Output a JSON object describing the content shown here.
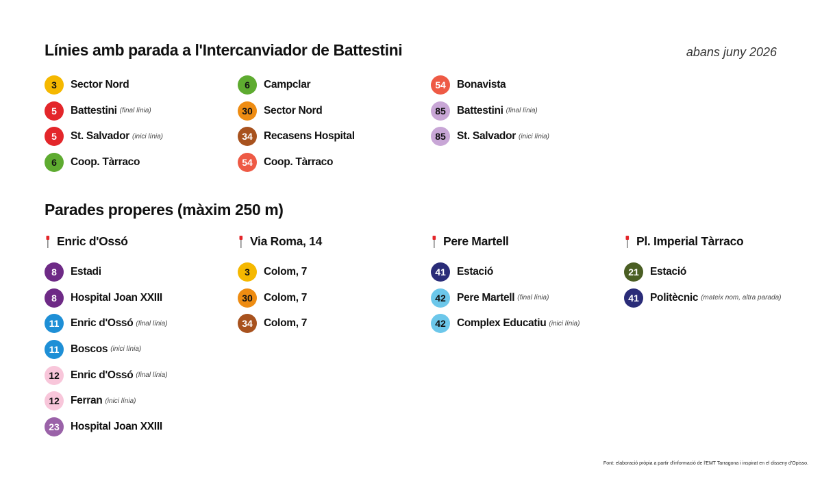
{
  "title": "Línies amb parada a l'Intercanviador de Battestini",
  "date_note": "abans juny 2026",
  "lines_columns": [
    [
      {
        "num": "3",
        "bg": "#F5B800",
        "fg": "#111111",
        "dest": "Sector Nord",
        "note": ""
      },
      {
        "num": "5",
        "bg": "#E3262A",
        "fg": "#ffffff",
        "dest": "Battestini",
        "note": "(final línia)"
      },
      {
        "num": "5",
        "bg": "#E3262A",
        "fg": "#ffffff",
        "dest": "St. Salvador",
        "note": "(inici línia)"
      },
      {
        "num": "6",
        "bg": "#5EAB30",
        "fg": "#111111",
        "dest": "Coop. Tàrraco",
        "note": ""
      }
    ],
    [
      {
        "num": "6",
        "bg": "#5EAB30",
        "fg": "#111111",
        "dest": "Campclar",
        "note": ""
      },
      {
        "num": "30",
        "bg": "#EE8C12",
        "fg": "#111111",
        "dest": "Sector Nord",
        "note": ""
      },
      {
        "num": "34",
        "bg": "#A8521E",
        "fg": "#ffffff",
        "dest": "Recasens Hospital",
        "note": ""
      },
      {
        "num": "54",
        "bg": "#EE5A45",
        "fg": "#ffffff",
        "dest": "Coop. Tàrraco",
        "note": ""
      }
    ],
    [
      {
        "num": "54",
        "bg": "#EE5A45",
        "fg": "#ffffff",
        "dest": "Bonavista",
        "note": ""
      },
      {
        "num": "85",
        "bg": "#C8A6D6",
        "fg": "#111111",
        "dest": "Battestini",
        "note": "(final línia)"
      },
      {
        "num": "85",
        "bg": "#C8A6D6",
        "fg": "#111111",
        "dest": "St. Salvador",
        "note": "(inici línia)"
      }
    ]
  ],
  "nearby_title": "Parades properes (màxim 250 m)",
  "stops": [
    {
      "name": "Enric d'Ossó",
      "lines": [
        {
          "num": "8",
          "bg": "#6E2A86",
          "fg": "#ffffff",
          "dest": "Estadi",
          "note": ""
        },
        {
          "num": "8",
          "bg": "#6E2A86",
          "fg": "#ffffff",
          "dest": "Hospital Joan XXIII",
          "note": ""
        },
        {
          "num": "11",
          "bg": "#1E8FD6",
          "fg": "#ffffff",
          "dest": "Enric d'Ossó",
          "note": "(final línia)"
        },
        {
          "num": "11",
          "bg": "#1E8FD6",
          "fg": "#ffffff",
          "dest": "Boscos",
          "note": "(inici línia)"
        },
        {
          "num": "12",
          "bg": "#F8C6DA",
          "fg": "#111111",
          "dest": "Enric d'Ossó",
          "note": "(final línia)"
        },
        {
          "num": "12",
          "bg": "#F8C6DA",
          "fg": "#111111",
          "dest": "Ferran",
          "note": "(inici línia)"
        },
        {
          "num": "23",
          "bg": "#9A62A8",
          "fg": "#ffffff",
          "dest": "Hospital Joan XXIII",
          "note": ""
        }
      ]
    },
    {
      "name": "Via Roma, 14",
      "lines": [
        {
          "num": "3",
          "bg": "#F5B800",
          "fg": "#111111",
          "dest": "Colom, 7",
          "note": ""
        },
        {
          "num": "30",
          "bg": "#EE8C12",
          "fg": "#111111",
          "dest": "Colom, 7",
          "note": ""
        },
        {
          "num": "34",
          "bg": "#A8521E",
          "fg": "#ffffff",
          "dest": "Colom, 7",
          "note": ""
        }
      ]
    },
    {
      "name": "Pere Martell",
      "lines": [
        {
          "num": "41",
          "bg": "#2A2C78",
          "fg": "#ffffff",
          "dest": "Estació",
          "note": ""
        },
        {
          "num": "42",
          "bg": "#6CC7EA",
          "fg": "#111111",
          "dest": "Pere Martell",
          "note": "(final línia)"
        },
        {
          "num": "42",
          "bg": "#6CC7EA",
          "fg": "#111111",
          "dest": "Complex Educatiu",
          "note": "(inici línia)"
        }
      ]
    },
    {
      "name": "Pl. Imperial Tàrraco",
      "lines": [
        {
          "num": "21",
          "bg": "#4A5E23",
          "fg": "#ffffff",
          "dest": "Estació",
          "note": ""
        },
        {
          "num": "41",
          "bg": "#2A2C78",
          "fg": "#ffffff",
          "dest": "Politècnic",
          "note": "(mateix nom, altra parada)"
        }
      ]
    }
  ],
  "footnote": "Font: elaboració pròpia a partir d'informació de l'EMT Tarragona i inspirat en el disseny d'Opisso.",
  "icons": {
    "stop": "bus-stop-sign-icon"
  },
  "colors": {
    "stop_icon_pole": "#888888",
    "stop_icon_sign": "#E3262A"
  }
}
